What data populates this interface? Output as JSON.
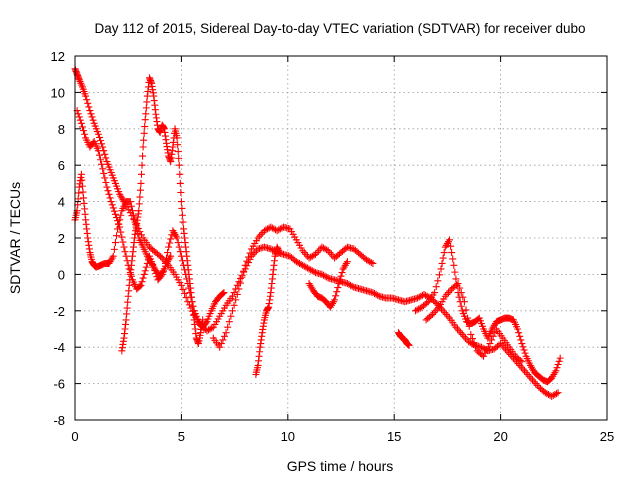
{
  "chart_data": {
    "type": "scatter",
    "title": "Day 112 of 2015, Sidereal Day-to-day VTEC variation (SDTVAR) for receiver dubo",
    "xlabel": "GPS time / hours",
    "ylabel": "SDTVAR / TECUs",
    "xlim": [
      0,
      25
    ],
    "ylim": [
      -8,
      12
    ],
    "xticks": [
      0,
      5,
      10,
      15,
      20,
      25
    ],
    "yticks": [
      -8,
      -6,
      -4,
      -2,
      0,
      2,
      4,
      6,
      8,
      10,
      12
    ],
    "grid": true,
    "marker": "+",
    "color": "#ff0000",
    "series": [
      {
        "name": "track-1",
        "x": [
          0.0,
          0.1,
          0.2,
          0.35,
          0.5,
          0.7,
          0.9,
          1.1,
          1.3,
          1.5,
          1.7,
          1.9,
          2.1,
          2.3,
          2.6,
          2.9,
          3.2,
          3.5,
          3.8,
          4.1,
          4.4,
          4.7,
          5.0,
          5.3,
          5.6,
          5.9,
          6.2,
          6.5,
          6.8,
          7.1,
          7.4,
          7.7,
          8.0,
          8.3,
          8.6,
          8.9,
          9.2,
          9.5,
          9.8,
          10.1,
          10.4,
          10.7,
          11.0,
          11.3,
          11.6,
          11.9,
          12.2,
          12.5,
          12.8,
          13.1,
          13.4,
          13.7,
          14.0,
          14.3,
          14.6,
          14.9,
          15.2,
          15.5,
          15.8,
          16.1,
          16.4,
          16.7,
          17.0,
          17.3,
          17.6,
          17.9,
          18.2,
          18.5,
          18.8,
          19.1,
          19.4,
          19.7,
          20.0,
          20.3,
          20.6,
          20.9,
          21.2,
          21.5,
          21.8,
          22.1,
          22.4,
          22.7
        ],
        "y": [
          11.3,
          11.0,
          10.7,
          10.3,
          9.8,
          9.0,
          8.3,
          7.7,
          7.0,
          6.2,
          5.6,
          5.0,
          4.4,
          4.0,
          3.4,
          2.7,
          2.0,
          1.5,
          1.2,
          0.9,
          0.5,
          0.0,
          -0.6,
          -1.5,
          -2.2,
          -2.8,
          -3.1,
          -2.9,
          -2.3,
          -1.7,
          -1.2,
          -0.4,
          0.3,
          1.0,
          1.4,
          1.5,
          1.4,
          1.2,
          1.1,
          1.0,
          0.7,
          0.5,
          0.3,
          0.1,
          0.0,
          -0.2,
          -0.3,
          -0.4,
          -0.5,
          -0.7,
          -0.8,
          -0.9,
          -1.0,
          -1.2,
          -1.3,
          -1.3,
          -1.4,
          -1.5,
          -1.4,
          -1.3,
          -1.1,
          -1.3,
          -1.6,
          -2.0,
          -2.4,
          -2.9,
          -3.3,
          -3.7,
          -3.9,
          -4.0,
          -4.2,
          -4.1,
          -3.8,
          -4.2,
          -4.6,
          -5.0,
          -5.4,
          -5.8,
          -6.2,
          -6.5,
          -6.7,
          -6.5
        ]
      },
      {
        "name": "track-2",
        "x": [
          0.0,
          0.1,
          0.2,
          0.3,
          0.4,
          0.5,
          0.6,
          0.7,
          0.8,
          0.9,
          1.0,
          1.2,
          1.4,
          1.6,
          1.8,
          2.0,
          2.2,
          2.4,
          2.6,
          2.8,
          3.0,
          3.2,
          3.4,
          3.6,
          3.8,
          4.0,
          4.2,
          4.4,
          4.6,
          4.8,
          5.0,
          5.2,
          5.4,
          5.6,
          5.8,
          6.0,
          6.2,
          6.4,
          6.6,
          6.8,
          7.0
        ],
        "y": [
          3.0,
          3.5,
          4.8,
          5.5,
          4.2,
          3.0,
          2.0,
          1.2,
          0.7,
          0.5,
          0.4,
          0.5,
          0.6,
          0.6,
          1.0,
          2.5,
          3.5,
          4.0,
          4.0,
          3.0,
          2.0,
          1.5,
          1.0,
          0.6,
          0.2,
          -0.1,
          0.3,
          1.5,
          2.4,
          2.0,
          1.0,
          0.0,
          -1.0,
          -2.0,
          -2.6,
          -2.9,
          -2.6,
          -2.0,
          -1.5,
          -1.2,
          -1.0
        ]
      },
      {
        "name": "track-3",
        "x": [
          2.2,
          2.3,
          2.4,
          2.5,
          2.6,
          2.7,
          2.8,
          2.9,
          3.0,
          3.1,
          3.2,
          3.3,
          3.4,
          3.5,
          3.6,
          3.7,
          3.8,
          3.9,
          4.0,
          4.1,
          4.2,
          4.3,
          4.4,
          4.5,
          4.6,
          4.7,
          4.8,
          4.9,
          5.0,
          5.1,
          5.2,
          5.3,
          5.4,
          5.5,
          5.6,
          5.7,
          5.8,
          5.9,
          6.0
        ],
        "y": [
          -4.2,
          -3.5,
          -2.5,
          -1.2,
          0.0,
          1.0,
          2.0,
          2.8,
          3.5,
          5.0,
          7.0,
          8.5,
          9.8,
          10.8,
          10.5,
          9.8,
          8.8,
          8.0,
          7.8,
          8.2,
          8.0,
          7.2,
          6.5,
          6.2,
          7.0,
          8.0,
          7.5,
          6.0,
          4.0,
          2.5,
          1.5,
          0.5,
          -0.5,
          -1.5,
          -2.5,
          -3.5,
          -3.8,
          -3.2,
          -2.5
        ]
      },
      {
        "name": "track-4",
        "x": [
          0.1,
          0.3,
          0.5,
          0.7,
          0.9,
          1.1,
          1.3,
          1.5,
          1.7,
          1.9,
          2.1,
          2.3,
          2.5,
          2.7,
          2.9,
          3.1,
          3.3,
          3.5,
          3.7,
          3.9,
          4.1,
          4.3,
          4.5
        ],
        "y": [
          9.0,
          8.3,
          7.5,
          7.0,
          7.3,
          6.8,
          5.8,
          4.8,
          4.0,
          3.3,
          2.6,
          1.5,
          0.5,
          -0.3,
          -0.8,
          -0.6,
          0.2,
          1.0,
          0.4,
          -0.3,
          0.0,
          0.6,
          1.0
        ]
      },
      {
        "name": "track-5",
        "x": [
          6.5,
          6.8,
          7.1,
          7.4,
          7.7,
          8.0,
          8.3,
          8.6,
          8.9,
          9.2,
          9.5,
          9.8,
          10.1,
          10.4,
          10.7,
          11.0,
          11.3,
          11.6,
          11.9,
          12.2,
          12.5,
          12.8,
          13.1,
          13.4,
          13.7,
          14.0
        ],
        "y": [
          -3.5,
          -4.0,
          -3.2,
          -2.0,
          -0.8,
          0.5,
          1.4,
          2.0,
          2.4,
          2.6,
          2.4,
          2.6,
          2.5,
          1.9,
          1.3,
          0.9,
          1.1,
          1.5,
          1.3,
          0.9,
          1.2,
          1.5,
          1.4,
          1.1,
          0.8,
          0.6
        ]
      },
      {
        "name": "track-6",
        "x": [
          8.5,
          8.6,
          8.7,
          8.8,
          8.9,
          9.0,
          9.1,
          9.2,
          9.3,
          9.4,
          9.5,
          9.6
        ],
        "y": [
          -5.5,
          -5.0,
          -4.0,
          -3.2,
          -2.5,
          -2.0,
          -1.8,
          -1.0,
          0.0,
          1.0,
          1.5,
          1.2
        ]
      },
      {
        "name": "track-7",
        "x": [
          11.0,
          11.2,
          11.4,
          11.6,
          11.8,
          12.0,
          12.2,
          12.4,
          12.6,
          12.8
        ],
        "y": [
          -0.5,
          -0.9,
          -1.2,
          -1.3,
          -1.5,
          -1.8,
          -1.4,
          -0.5,
          0.3,
          0.7
        ]
      },
      {
        "name": "track-8",
        "x": [
          15.2,
          15.3,
          15.4,
          15.5,
          15.6,
          15.7
        ],
        "y": [
          -3.2,
          -3.4,
          -3.5,
          -3.6,
          -3.8,
          -3.9
        ]
      },
      {
        "name": "track-9",
        "x": [
          16.0,
          16.3,
          16.6,
          16.9,
          17.2,
          17.4,
          17.6,
          17.8,
          18.0,
          18.2,
          18.4,
          18.6,
          18.8,
          19.0,
          19.2,
          19.4,
          19.6,
          19.8,
          20.0,
          20.2,
          20.4,
          20.6,
          20.8,
          21.0,
          21.2,
          21.4,
          21.6,
          21.8,
          22.0,
          22.2,
          22.4,
          22.6,
          22.8
        ],
        "y": [
          -2.0,
          -1.8,
          -1.5,
          -1.0,
          0.3,
          1.5,
          1.9,
          0.5,
          -1.0,
          -2.0,
          -2.6,
          -2.7,
          -2.6,
          -2.4,
          -3.0,
          -3.5,
          -3.0,
          -2.6,
          -2.5,
          -2.4,
          -2.4,
          -2.5,
          -3.0,
          -3.8,
          -4.5,
          -5.0,
          -5.4,
          -5.6,
          -5.8,
          -5.9,
          -5.7,
          -5.3,
          -4.6
        ]
      },
      {
        "name": "track-10",
        "x": [
          16.5,
          16.8,
          17.1,
          17.4,
          17.7,
          18.0,
          18.3,
          18.6,
          18.9,
          19.2,
          19.5,
          19.8,
          20.1,
          20.4,
          20.7,
          21.0
        ],
        "y": [
          -2.5,
          -2.2,
          -1.8,
          -1.2,
          -0.8,
          -0.5,
          -1.5,
          -3.3,
          -4.2,
          -4.5,
          -3.8,
          -3.0,
          -3.5,
          -4.0,
          -4.5,
          -4.8
        ]
      }
    ]
  }
}
